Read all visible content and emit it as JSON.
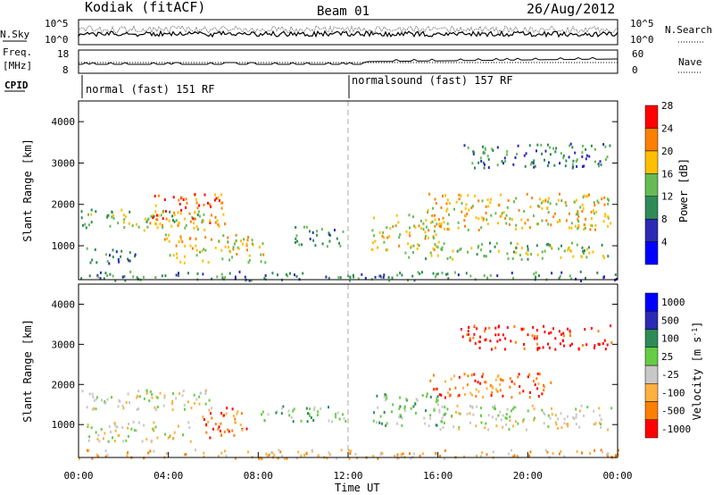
{
  "header": {
    "station": "Kodiak (fitACF)",
    "beam": "Beam 01",
    "date": "26/Aug/2012"
  },
  "strip": {
    "nsky_label": "N.Sky",
    "nsearch_label": "N.Search",
    "nsky_ticks": [
      "10^5",
      "10^0"
    ],
    "nsearch_ticks": [
      "10^5",
      "10^0"
    ],
    "freq_label": "Freq.",
    "freq_unit": "[MHz]",
    "freq_ticks": [
      "18",
      "8"
    ],
    "nave_label": "Nave",
    "nave_ticks": [
      "60",
      "0"
    ],
    "cpid_label": "CPID",
    "cpid_modes": [
      {
        "label": "normal (fast) 151 RF",
        "start_hour": 0
      },
      {
        "label": "normalsound (fast) 157 RF",
        "start_hour": 12
      }
    ]
  },
  "chart_data": [
    {
      "type": "heatmap",
      "name": "Power",
      "ylabel": "Slant Range [km]",
      "xlabel": "",
      "xlim": [
        0,
        24
      ],
      "ylim": [
        180,
        4500
      ],
      "yticks": [
        "1000",
        "2000",
        "3000",
        "4000"
      ],
      "colorbar_label": "Power [dB]",
      "colorbar_ticks": [
        "4",
        "8",
        "12",
        "16",
        "20",
        "24",
        "28"
      ],
      "colorbar_colors": [
        "#0000ff",
        "#2a2ab4",
        "#2e8b57",
        "#66bb55",
        "#ffbf00",
        "#ff7f00",
        "#ff0000"
      ],
      "echo_regions": [
        {
          "t": [
            0.1,
            5.8
          ],
          "r": [
            1400,
            1900
          ],
          "level": 3
        },
        {
          "t": [
            3.0,
            6.5
          ],
          "r": [
            1500,
            2300
          ],
          "level": 5
        },
        {
          "t": [
            3.8,
            8.3
          ],
          "r": [
            600,
            1300
          ],
          "level": 4
        },
        {
          "t": [
            0.3,
            2.5
          ],
          "r": [
            600,
            1000
          ],
          "level": 2
        },
        {
          "t": [
            9.6,
            11.8
          ],
          "r": [
            1000,
            1500
          ],
          "level": 2
        },
        {
          "t": [
            13.0,
            16.3
          ],
          "r": [
            900,
            1800
          ],
          "level": 4
        },
        {
          "t": [
            14.5,
            23.7
          ],
          "r": [
            700,
            1100
          ],
          "level": 3
        },
        {
          "t": [
            15.5,
            23.7
          ],
          "r": [
            1400,
            2300
          ],
          "level": 4
        },
        {
          "t": [
            17.0,
            23.7
          ],
          "r": [
            2900,
            3500
          ],
          "level": 2
        },
        {
          "t": [
            0.0,
            24.0
          ],
          "r": [
            180,
            400
          ],
          "level": 2
        }
      ]
    },
    {
      "type": "heatmap",
      "name": "Velocity",
      "ylabel": "Slant Range [km]",
      "xlabel": "Time UT",
      "xlim": [
        0,
        24
      ],
      "ylim": [
        180,
        4500
      ],
      "xticks": [
        "00:00",
        "04:00",
        "08:00",
        "12:00",
        "16:00",
        "20:00",
        "00:00"
      ],
      "yticks": [
        "1000",
        "2000",
        "3000",
        "4000"
      ],
      "colorbar_label": "Velocity [m s",
      "colorbar_label_exponent": "-1",
      "colorbar_label_close": "]",
      "colorbar_ticks": [
        "1000",
        "500",
        "100",
        "25",
        "-25",
        "-100",
        "-500",
        "-1000"
      ],
      "colorbar_colors": [
        "#0000ff",
        "#2a2ab4",
        "#2e8b57",
        "#66cc44",
        "#c8c8c8",
        "#ffb040",
        "#ff7f00",
        "#ff0000"
      ],
      "echo_regions": [
        {
          "t": [
            0.1,
            6.0
          ],
          "r": [
            1400,
            1900
          ],
          "level": 4
        },
        {
          "t": [
            0.3,
            5.0
          ],
          "r": [
            600,
            1100
          ],
          "level": 4
        },
        {
          "t": [
            5.5,
            7.5
          ],
          "r": [
            700,
            1500
          ],
          "level": 6
        },
        {
          "t": [
            8.0,
            12.0
          ],
          "r": [
            1100,
            1500
          ],
          "level": 3
        },
        {
          "t": [
            13.0,
            16.3
          ],
          "r": [
            1000,
            1800
          ],
          "level": 3
        },
        {
          "t": [
            15.5,
            21.0
          ],
          "r": [
            1700,
            2300
          ],
          "level": 6
        },
        {
          "t": [
            16.0,
            23.7
          ],
          "r": [
            900,
            1500
          ],
          "level": 4
        },
        {
          "t": [
            17.0,
            23.7
          ],
          "r": [
            2900,
            3500
          ],
          "level": 7
        },
        {
          "t": [
            0.0,
            24.0
          ],
          "r": [
            180,
            400
          ],
          "level": 5
        }
      ]
    }
  ]
}
